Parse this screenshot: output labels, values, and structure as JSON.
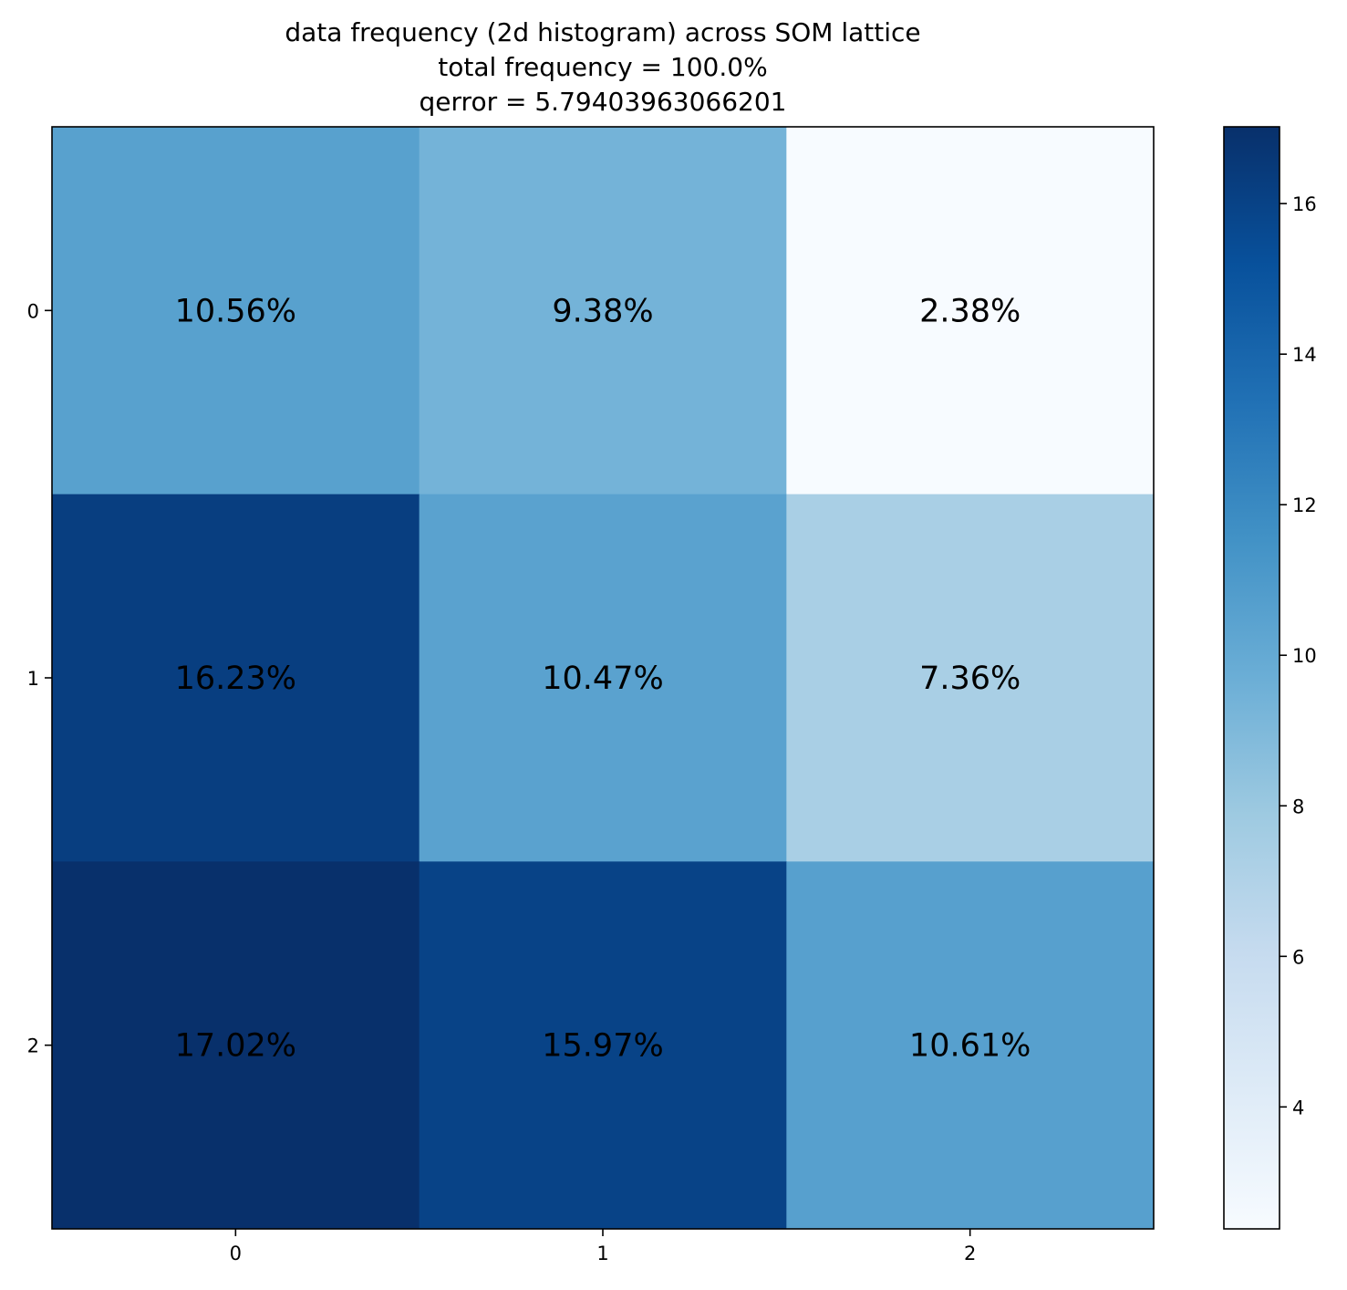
{
  "chart_data": {
    "type": "heatmap",
    "title_lines": [
      "data frequency (2d histogram) across SOM lattice",
      "total frequency = 100.0%",
      "qerror = 5.79403963066201"
    ],
    "x_ticks": [
      "0",
      "1",
      "2"
    ],
    "y_ticks": [
      "0",
      "1",
      "2"
    ],
    "values": [
      [
        10.56,
        9.38,
        2.38
      ],
      [
        16.23,
        10.47,
        7.36
      ],
      [
        17.02,
        15.97,
        10.61
      ]
    ],
    "cell_labels": [
      [
        "10.56%",
        "9.38%",
        "2.38%"
      ],
      [
        "16.23%",
        "10.47%",
        "7.36%"
      ],
      [
        "17.02%",
        "15.97%",
        "10.61%"
      ]
    ],
    "colormap": "Blues",
    "colorbar": {
      "range": [
        2.38,
        17.02
      ],
      "ticks": [
        4,
        6,
        8,
        10,
        12,
        14,
        16
      ],
      "tick_labels": [
        "4",
        "6",
        "8",
        "10",
        "12",
        "14",
        "16"
      ]
    },
    "grid": false
  }
}
